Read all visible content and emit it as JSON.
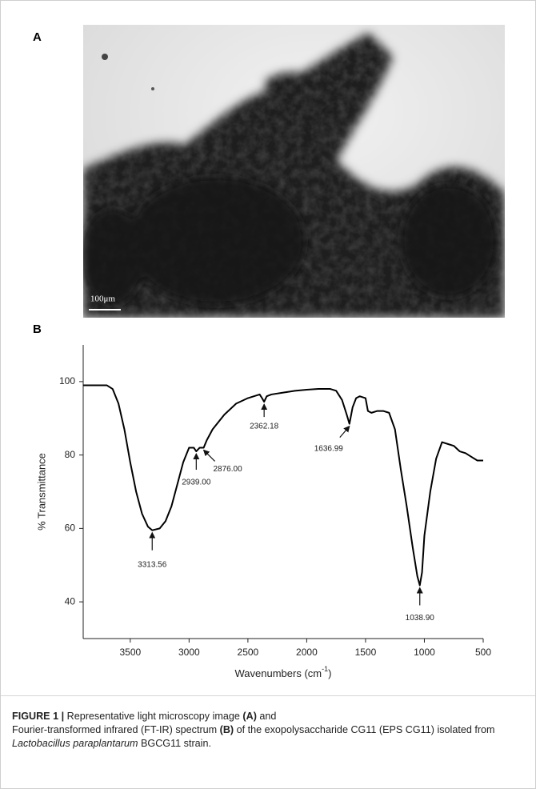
{
  "panel_a": {
    "label": "A",
    "scale_bar": "100μm"
  },
  "chart_data": {
    "type": "line",
    "panel_label": "B",
    "x_label": {
      "text": "Wavenumbers (cm",
      "sup": "-1",
      "end": ")"
    },
    "y_label": "% Transmittance",
    "x": [
      3900,
      3800,
      3700,
      3650,
      3600,
      3550,
      3500,
      3450,
      3400,
      3350,
      3313.56,
      3250,
      3200,
      3150,
      3100,
      3050,
      3000,
      2960,
      2939,
      2910,
      2876,
      2850,
      2800,
      2700,
      2600,
      2500,
      2400,
      2380,
      2362.18,
      2340,
      2300,
      2200,
      2100,
      2000,
      1900,
      1800,
      1750,
      1700,
      1660,
      1636.99,
      1610,
      1580,
      1550,
      1500,
      1480,
      1450,
      1400,
      1350,
      1300,
      1250,
      1200,
      1150,
      1100,
      1060,
      1038.9,
      1020,
      1000,
      950,
      900,
      850,
      800,
      750,
      700,
      650,
      600,
      550,
      500
    ],
    "values": [
      99,
      99,
      99,
      98,
      94,
      87,
      78,
      70,
      64,
      60.5,
      59.5,
      60,
      62,
      66,
      72,
      78,
      82,
      82,
      81,
      82,
      82,
      84,
      87,
      91,
      94,
      95.5,
      96.5,
      95.5,
      94.5,
      96,
      96.5,
      97,
      97.5,
      97.8,
      98,
      98,
      97.5,
      95,
      91,
      88.5,
      93,
      95.5,
      96,
      95.5,
      92,
      91.5,
      92,
      92,
      91.5,
      87,
      76,
      66,
      55,
      47,
      44.5,
      48,
      58,
      70,
      79,
      83.5,
      83,
      82.5,
      81,
      80.5,
      79.5,
      78.5,
      78.5
    ],
    "color": "#000000",
    "xlim": [
      3900,
      500
    ],
    "ylim": [
      30,
      110
    ],
    "xticks": [
      3500,
      3000,
      2500,
      2000,
      1500,
      1000,
      500
    ],
    "yticks": [
      40,
      60,
      80,
      100
    ],
    "annotations": [
      {
        "label": "3313.56",
        "x": 3313.56,
        "y": 59.5
      },
      {
        "label": "2939.00",
        "x": 2939,
        "y": 81
      },
      {
        "label": "2876.00",
        "x": 2876,
        "y": 82
      },
      {
        "label": "2362.18",
        "x": 2362.18,
        "y": 94.5
      },
      {
        "label": "1636.99",
        "x": 1636.99,
        "y": 88.5
      },
      {
        "label": "1038.90",
        "x": 1038.9,
        "y": 44.5
      }
    ]
  },
  "caption": {
    "figure": "FIGURE 1 |",
    "part1": " Representative light microscopy image ",
    "a": "(A)",
    "part2": " and",
    "part3": "Fourier-transformed infrared (FT-IR) spectrum ",
    "b": "(B)",
    "part4": " of the exopolysaccharide CG11 (EPS CG11) isolated from ",
    "species": "Lactobacillus paraplantarum",
    "part5": " BGCG11 strain."
  }
}
